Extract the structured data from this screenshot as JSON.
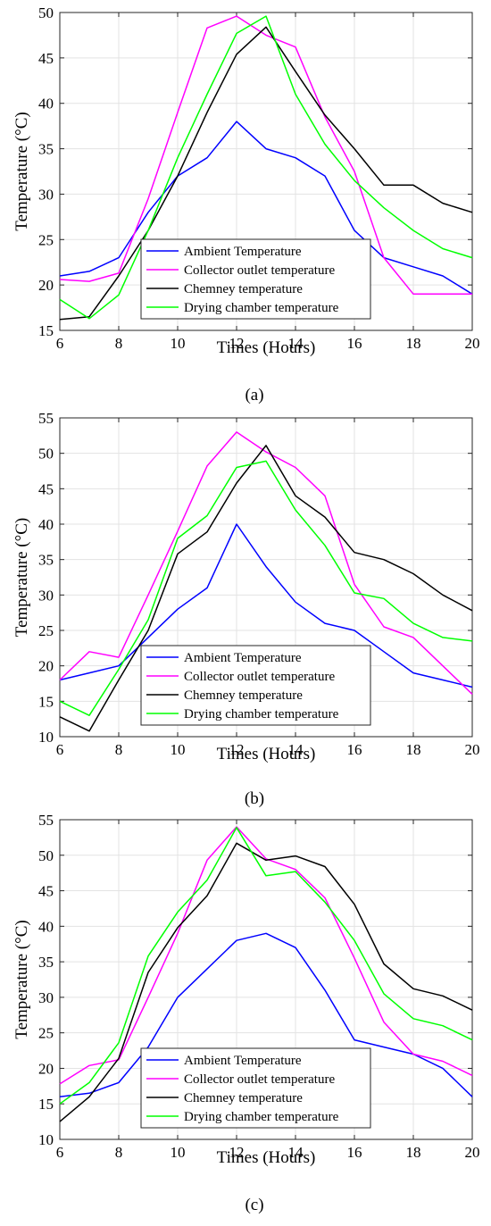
{
  "chart_data": [
    {
      "type": "line",
      "panel_label": "(a)",
      "xlabel": "Times (Hours)",
      "ylabel": "Temperature (°C)",
      "xlim": [
        6,
        20
      ],
      "ylim": [
        15,
        50
      ],
      "xticks": [
        6,
        8,
        10,
        12,
        14,
        16,
        18,
        20
      ],
      "yticks": [
        15,
        20,
        25,
        30,
        35,
        40,
        45,
        50
      ],
      "grid": true,
      "legend_position": "lower-center",
      "x": [
        6,
        7,
        8,
        9,
        10,
        11,
        12,
        13,
        14,
        15,
        16,
        17,
        18,
        19,
        20
      ],
      "series": [
        {
          "name": "Ambient Temperature",
          "color": "#0000ff",
          "values": [
            21,
            21.5,
            23,
            28,
            32,
            34,
            38,
            35,
            34,
            32,
            26,
            23,
            22,
            21,
            19
          ]
        },
        {
          "name": "Collector outlet temperature",
          "color": "#ff00ff",
          "values": [
            20.6,
            20.4,
            21.3,
            29.5,
            39,
            48.3,
            49.6,
            47.5,
            46.2,
            38.5,
            32.5,
            23,
            19,
            19,
            19
          ]
        },
        {
          "name": "Chemney temperature",
          "color": "#000000",
          "values": [
            16.2,
            16.5,
            21,
            26,
            32,
            39,
            45.4,
            48.4,
            43.5,
            38.7,
            35,
            31,
            31,
            29,
            28
          ]
        },
        {
          "name": "Drying chamber temperature",
          "color": "#00ff00",
          "values": [
            18.4,
            16.3,
            18.9,
            26,
            34,
            41,
            47.7,
            49.6,
            41,
            35.5,
            31.5,
            28.5,
            26,
            24,
            23
          ]
        }
      ]
    },
    {
      "type": "line",
      "panel_label": "(b)",
      "xlabel": "Times (Hours)",
      "ylabel": "Temperature (°C)",
      "xlim": [
        6,
        20
      ],
      "ylim": [
        10,
        55
      ],
      "xticks": [
        6,
        8,
        10,
        12,
        14,
        16,
        18,
        20
      ],
      "yticks": [
        10,
        15,
        20,
        25,
        30,
        35,
        40,
        45,
        50,
        55
      ],
      "grid": true,
      "legend_position": "lower-center",
      "x": [
        6,
        7,
        8,
        9,
        10,
        11,
        12,
        13,
        14,
        15,
        16,
        17,
        18,
        19,
        20
      ],
      "series": [
        {
          "name": "Ambient Temperature",
          "color": "#0000ff",
          "values": [
            18,
            19,
            20,
            24,
            28,
            31,
            40,
            34,
            29,
            26,
            25,
            22,
            19,
            18,
            17
          ]
        },
        {
          "name": "Collector outlet temperature",
          "color": "#ff00ff",
          "values": [
            18,
            22,
            21.2,
            30,
            39,
            48.2,
            53,
            50.2,
            48,
            44,
            31.5,
            25.5,
            24,
            20,
            16
          ]
        },
        {
          "name": "Chemney temperature",
          "color": "#000000",
          "values": [
            12.8,
            10.8,
            18,
            25,
            35.8,
            38.9,
            45.8,
            51.1,
            44,
            41,
            36,
            35,
            33,
            30,
            27.8
          ]
        },
        {
          "name": "Drying chamber temperature",
          "color": "#00ff00",
          "values": [
            15,
            13,
            19.5,
            26.5,
            38,
            41.2,
            48,
            48.9,
            42,
            37,
            30.3,
            29.5,
            26,
            24,
            23.5
          ]
        }
      ]
    },
    {
      "type": "line",
      "panel_label": "(c)",
      "xlabel": "Times (Hours)",
      "ylabel": "Temperature (°C)",
      "xlim": [
        6,
        20
      ],
      "ylim": [
        10,
        55
      ],
      "xticks": [
        6,
        8,
        10,
        12,
        14,
        16,
        18,
        20
      ],
      "yticks": [
        10,
        15,
        20,
        25,
        30,
        35,
        40,
        45,
        50,
        55
      ],
      "grid": true,
      "legend_position": "lower-center",
      "x": [
        6,
        7,
        8,
        9,
        10,
        11,
        12,
        13,
        14,
        15,
        16,
        17,
        18,
        19,
        20
      ],
      "series": [
        {
          "name": "Ambient Temperature",
          "color": "#0000ff",
          "values": [
            16,
            16.5,
            18,
            23,
            30,
            34,
            38,
            39,
            37,
            31,
            24,
            23,
            22,
            20,
            16
          ]
        },
        {
          "name": "Collector outlet temperature",
          "color": "#ff00ff",
          "values": [
            17.8,
            20.4,
            21.2,
            30,
            39,
            49.3,
            54,
            49.5,
            48,
            44,
            35.5,
            26.5,
            22,
            21,
            19
          ]
        },
        {
          "name": "Chemney temperature",
          "color": "#000000",
          "values": [
            12.5,
            16,
            21.4,
            33.5,
            39.8,
            44.3,
            51.7,
            49.3,
            49.9,
            48.4,
            43.1,
            34.7,
            31.2,
            30.2,
            28.2
          ]
        },
        {
          "name": "Drying chamber temperature",
          "color": "#00ff00",
          "values": [
            15,
            18,
            23.6,
            35.8,
            42,
            46.5,
            53.9,
            47.1,
            47.7,
            43.4,
            38,
            30.5,
            27,
            26,
            24
          ]
        }
      ]
    }
  ]
}
